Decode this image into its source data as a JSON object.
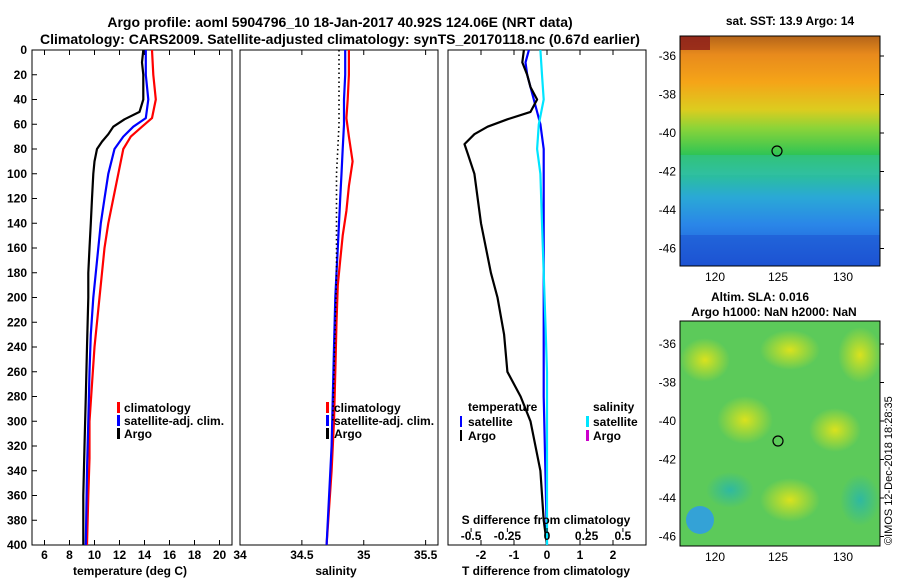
{
  "header": {
    "line1": "Argo profile: aoml 5904796_10 18-Jan-2017 40.92S 124.06E (NRT data)",
    "line2": "Climatology: CARS2009. Satellite-adjusted climatology: synTS_20170118.nc (0.67d earlier)"
  },
  "sst_map": {
    "title": "sat. SST: 13.9 Argo: 14",
    "xticks": [
      "120",
      "125",
      "130"
    ],
    "yticks": [
      "-36",
      "-38",
      "-40",
      "-42",
      "-44",
      "-46"
    ]
  },
  "sla_map": {
    "title1": "Altim. SLA: 0.016",
    "title2": "Argo h1000: NaN h2000: NaN",
    "xticks": [
      "120",
      "125",
      "130"
    ],
    "yticks": [
      "-36",
      "-38",
      "-40",
      "-42",
      "-44",
      "-46"
    ]
  },
  "watermark": "©IMOS 12-Dec-2018 18:28:35",
  "colors": {
    "climatology": "#ff0000",
    "satellite": "#0000ff",
    "argo": "#000000",
    "salinity_satellite": "#00e5ff",
    "salinity_argo": "#cc00cc"
  },
  "chart_data": [
    {
      "type": "line",
      "name": "temperature",
      "xlabel": "temperature (deg C)",
      "xlim": [
        5,
        21
      ],
      "ylim": [
        400,
        0
      ],
      "xtick_labels": [
        "6",
        "8",
        "10",
        "12",
        "14",
        "16",
        "18",
        "20"
      ],
      "xtick_values": [
        6,
        8,
        10,
        12,
        14,
        16,
        18,
        20
      ],
      "yticks": [
        0,
        20,
        40,
        60,
        80,
        100,
        120,
        140,
        160,
        180,
        200,
        220,
        240,
        260,
        280,
        300,
        320,
        340,
        360,
        380,
        400
      ],
      "legend": [
        "climatology",
        "satellite-adj. clim.",
        "Argo"
      ],
      "series": [
        {
          "name": "climatology",
          "color": "#ff0000",
          "points": [
            [
              14.6,
              0
            ],
            [
              14.7,
              20
            ],
            [
              14.9,
              40
            ],
            [
              14.6,
              55
            ],
            [
              13.8,
              62
            ],
            [
              12.9,
              70
            ],
            [
              12.3,
              80
            ],
            [
              11.9,
              100
            ],
            [
              11.5,
              120
            ],
            [
              11.1,
              140
            ],
            [
              10.8,
              160
            ],
            [
              10.6,
              180
            ],
            [
              10.4,
              200
            ],
            [
              10.2,
              220
            ],
            [
              10.0,
              240
            ],
            [
              9.8,
              270
            ],
            [
              9.6,
              300
            ],
            [
              9.6,
              330
            ],
            [
              9.5,
              360
            ],
            [
              9.4,
              400
            ]
          ]
        },
        {
          "name": "satellite-adj. clim.",
          "color": "#0000ff",
          "points": [
            [
              14.1,
              0
            ],
            [
              14.1,
              20
            ],
            [
              14.3,
              40
            ],
            [
              14.1,
              55
            ],
            [
              13.1,
              62
            ],
            [
              12.3,
              70
            ],
            [
              11.6,
              80
            ],
            [
              11.1,
              100
            ],
            [
              10.8,
              120
            ],
            [
              10.5,
              140
            ],
            [
              10.3,
              160
            ],
            [
              10.1,
              180
            ],
            [
              9.9,
              200
            ],
            [
              9.7,
              230
            ],
            [
              9.6,
              260
            ],
            [
              9.5,
              300
            ],
            [
              9.4,
              340
            ],
            [
              9.3,
              400
            ]
          ]
        },
        {
          "name": "Argo",
          "color": "#000000",
          "points": [
            [
              13.9,
              0
            ],
            [
              13.8,
              10
            ],
            [
              13.9,
              20
            ],
            [
              13.9,
              40
            ],
            [
              13.6,
              50
            ],
            [
              12.4,
              56
            ],
            [
              11.5,
              62
            ],
            [
              11.1,
              68
            ],
            [
              10.6,
              74
            ],
            [
              10.2,
              80
            ],
            [
              10.0,
              90
            ],
            [
              9.9,
              100
            ],
            [
              9.8,
              120
            ],
            [
              9.7,
              140
            ],
            [
              9.6,
              160
            ],
            [
              9.5,
              180
            ],
            [
              9.5,
              200
            ],
            [
              9.4,
              240
            ],
            [
              9.3,
              280
            ],
            [
              9.2,
              320
            ],
            [
              9.1,
              360
            ],
            [
              9.1,
              400
            ]
          ]
        }
      ]
    },
    {
      "type": "line",
      "name": "salinity",
      "xlabel": "salinity",
      "xlim": [
        34.0,
        35.6
      ],
      "ylim": [
        400,
        0
      ],
      "xtick_labels": [
        "34",
        "34.5",
        "35",
        "35.5"
      ],
      "xtick_values": [
        34.0,
        34.5,
        35.0,
        35.5
      ],
      "legend": [
        "climatology",
        "satellite-adj. clim.",
        "Argo"
      ],
      "series": [
        {
          "name": "climatology",
          "color": "#ff0000",
          "points": [
            [
              34.88,
              0
            ],
            [
              34.88,
              20
            ],
            [
              34.87,
              40
            ],
            [
              34.86,
              55
            ],
            [
              34.88,
              70
            ],
            [
              34.91,
              90
            ],
            [
              34.88,
              110
            ],
            [
              34.86,
              130
            ],
            [
              34.83,
              150
            ],
            [
              34.81,
              170
            ],
            [
              34.79,
              190
            ],
            [
              34.78,
              220
            ],
            [
              34.77,
              260
            ],
            [
              34.76,
              300
            ],
            [
              34.74,
              340
            ],
            [
              34.72,
              370
            ],
            [
              34.7,
              400
            ]
          ]
        },
        {
          "name": "satellite-adj. clim.",
          "color": "#0000ff",
          "points": [
            [
              34.85,
              0
            ],
            [
              34.85,
              20
            ],
            [
              34.84,
              40
            ],
            [
              34.84,
              60
            ],
            [
              34.83,
              80
            ],
            [
              34.82,
              100
            ],
            [
              34.81,
              120
            ],
            [
              34.8,
              140
            ],
            [
              34.79,
              160
            ],
            [
              34.78,
              180
            ],
            [
              34.77,
              200
            ],
            [
              34.76,
              240
            ],
            [
              34.75,
              280
            ],
            [
              34.74,
              320
            ],
            [
              34.72,
              360
            ],
            [
              34.7,
              400
            ]
          ]
        },
        {
          "name": "Argo",
          "color": "#000000",
          "dotted": true,
          "points": [
            [
              34.8,
              0
            ],
            [
              34.8,
              20
            ],
            [
              34.8,
              40
            ],
            [
              34.8,
              60
            ],
            [
              34.79,
              80
            ],
            [
              34.78,
              100
            ],
            [
              34.78,
              140
            ],
            [
              34.78,
              180
            ],
            [
              34.77,
              220
            ],
            [
              34.76,
              260
            ],
            [
              34.75,
              300
            ]
          ]
        }
      ]
    },
    {
      "type": "line",
      "name": "difference",
      "xlabel": "T difference from climatology",
      "xlabel2": "S difference from climatology",
      "xlim": [
        -3,
        3
      ],
      "ylim": [
        400,
        0
      ],
      "xtick_labels": [
        "-2",
        "-1",
        "0",
        "1",
        "2"
      ],
      "xtick_values": [
        -2,
        -1,
        0,
        1,
        2
      ],
      "s_tick_labels": [
        "-0.5",
        "-0.25",
        "0",
        "0.25",
        "0.5"
      ],
      "s_tick_values": [
        -2.3,
        -1.2,
        0,
        1.2,
        2.3
      ],
      "legend_titles": [
        "temperature",
        "salinity"
      ],
      "legend_left": [
        "satellite",
        "Argo"
      ],
      "legend_right": [
        "satellite",
        "Argo"
      ],
      "series": [
        {
          "name": "T satellite",
          "color": "#0000ff",
          "points": [
            [
              -0.55,
              0
            ],
            [
              -0.65,
              10
            ],
            [
              -0.6,
              20
            ],
            [
              -0.4,
              40
            ],
            [
              -0.3,
              50
            ],
            [
              -0.2,
              60
            ],
            [
              -0.1,
              80
            ],
            [
              -0.1,
              120
            ],
            [
              -0.1,
              200
            ],
            [
              -0.1,
              280
            ],
            [
              -0.05,
              340
            ],
            [
              0,
              400
            ]
          ]
        },
        {
          "name": "T Argo",
          "color": "#000000",
          "points": [
            [
              -0.7,
              0
            ],
            [
              -0.75,
              10
            ],
            [
              -0.6,
              20
            ],
            [
              -0.5,
              30
            ],
            [
              -0.3,
              40
            ],
            [
              -0.5,
              50
            ],
            [
              -1.2,
              56
            ],
            [
              -1.8,
              62
            ],
            [
              -2.2,
              68
            ],
            [
              -2.5,
              76
            ],
            [
              -2.4,
              84
            ],
            [
              -2.2,
              100
            ],
            [
              -2.0,
              140
            ],
            [
              -1.7,
              180
            ],
            [
              -1.5,
              200
            ],
            [
              -1.3,
              230
            ],
            [
              -1.2,
              260
            ],
            [
              -0.8,
              280
            ],
            [
              -0.5,
              300
            ],
            [
              -0.2,
              340
            ],
            [
              -0.1,
              380
            ],
            [
              0,
              400
            ]
          ]
        },
        {
          "name": "S satellite",
          "color": "#00e5ff",
          "points": [
            [
              -0.2,
              0
            ],
            [
              -0.15,
              20
            ],
            [
              -0.1,
              40
            ],
            [
              -0.25,
              60
            ],
            [
              -0.3,
              80
            ],
            [
              -0.2,
              100
            ],
            [
              -0.15,
              140
            ],
            [
              -0.1,
              180
            ],
            [
              -0.05,
              220
            ],
            [
              0,
              260
            ],
            [
              0,
              300
            ],
            [
              0,
              360
            ],
            [
              0,
              400
            ]
          ]
        },
        {
          "name": "S Argo",
          "color": "#cc00cc",
          "points": []
        }
      ]
    }
  ]
}
